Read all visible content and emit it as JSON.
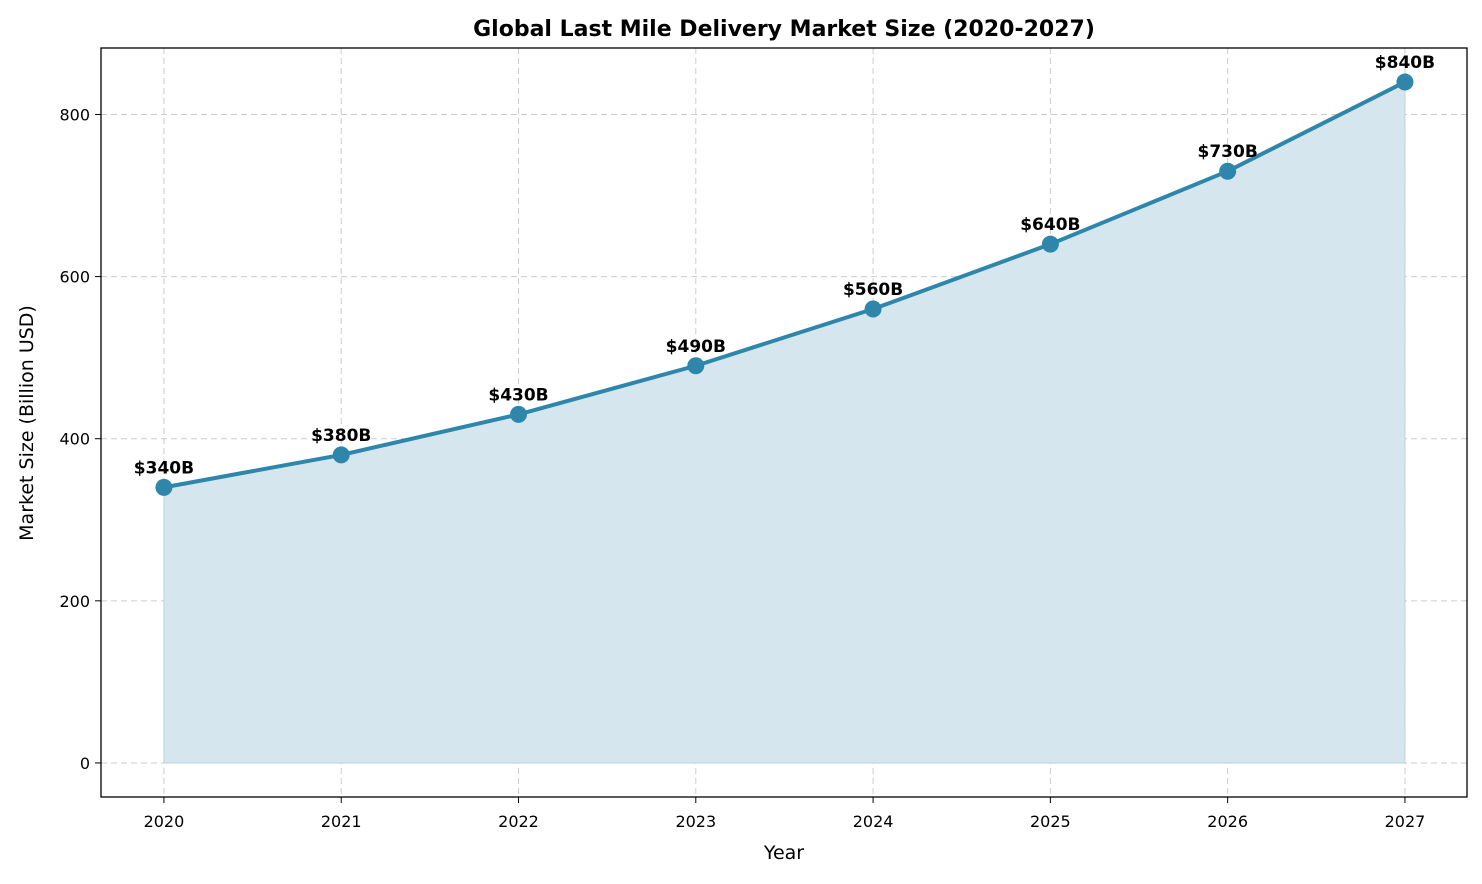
{
  "chart_data": {
    "type": "area",
    "title": "Global Last Mile Delivery Market Size (2020-2027)",
    "xlabel": "Year",
    "ylabel": "Market Size (Billion USD)",
    "x": [
      2020,
      2021,
      2022,
      2023,
      2024,
      2025,
      2026,
      2027
    ],
    "values": [
      340,
      380,
      430,
      490,
      560,
      640,
      730,
      840
    ],
    "data_labels": [
      "$340B",
      "$380B",
      "$430B",
      "$490B",
      "$560B",
      "$640B",
      "$730B",
      "$840B"
    ],
    "xticks": [
      "2020",
      "2021",
      "2022",
      "2023",
      "2024",
      "2025",
      "2026",
      "2027"
    ],
    "yticks": [
      "0",
      "200",
      "400",
      "600",
      "800"
    ],
    "ylim": [
      -42,
      882
    ],
    "xlim": [
      2019.645,
      2027.35
    ],
    "grid": true,
    "colors": {
      "line": "#2E86AB",
      "fill": "#D5E6EE",
      "grid": "#CCCCCC"
    }
  }
}
